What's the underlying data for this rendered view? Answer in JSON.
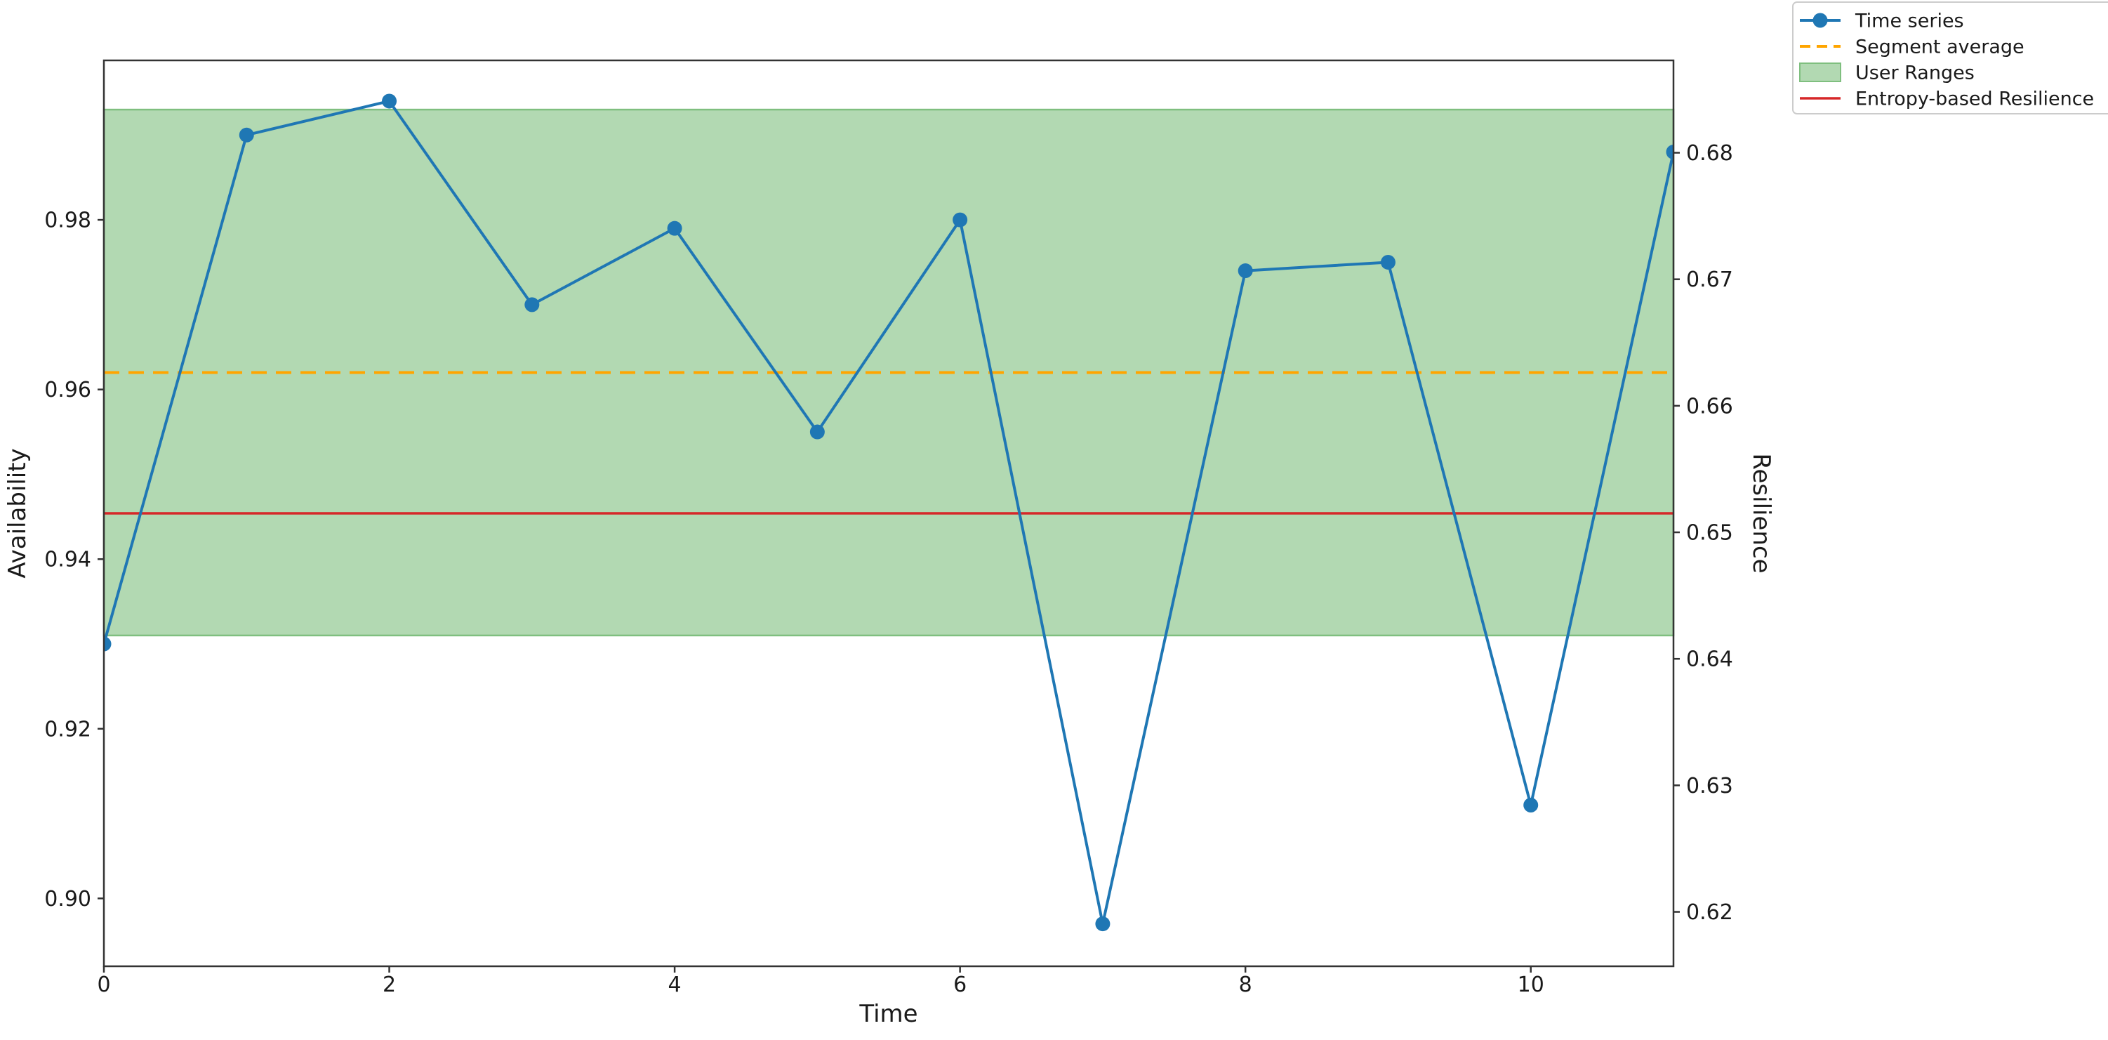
{
  "chart_data": {
    "type": "line",
    "title": "",
    "xlabel": "Time",
    "ylabel_left": "Availability",
    "ylabel_right": "Resilience",
    "x": [
      0,
      1,
      2,
      3,
      4,
      5,
      6,
      7,
      8,
      9,
      10,
      11
    ],
    "series": [
      {
        "name": "Time series",
        "axis": "left",
        "color": "#1f77b4",
        "marker": "circle",
        "values": [
          0.93,
          0.99,
          0.994,
          0.97,
          0.979,
          0.955,
          0.98,
          0.897,
          0.974,
          0.975,
          0.911,
          0.988
        ]
      }
    ],
    "overlays": [
      {
        "name": "Segment average",
        "kind": "hline",
        "axis": "left",
        "value": 0.962,
        "color": "#ffa500",
        "dash": [
          22,
          13
        ],
        "width": 4
      },
      {
        "name": "User Ranges",
        "kind": "hspan",
        "axis": "left",
        "from": 0.931,
        "to": 0.993,
        "fill": "#b2d9b2",
        "edge": "#7fbf7f"
      },
      {
        "name": "Entropy-based Resilience",
        "kind": "hline",
        "axis": "right",
        "value": 0.6515,
        "color": "#d62728",
        "dash": null,
        "width": 3.5
      }
    ],
    "x_ticks": [
      0,
      2,
      4,
      6,
      8,
      10
    ],
    "x_tick_labels": [
      "0",
      "2",
      "4",
      "6",
      "8",
      "10"
    ],
    "left_ticks": [
      0.9,
      0.92,
      0.94,
      0.96,
      0.98
    ],
    "left_tick_labels": [
      "0.90",
      "0.92",
      "0.94",
      "0.96",
      "0.98"
    ],
    "right_ticks": [
      0.62,
      0.63,
      0.64,
      0.65,
      0.66,
      0.67,
      0.68
    ],
    "right_tick_labels": [
      "0.62",
      "0.63",
      "0.64",
      "0.65",
      "0.66",
      "0.67",
      "0.68"
    ],
    "xlim": [
      0,
      11
    ],
    "ylim_left": [
      0.892,
      0.9988
    ],
    "ylim_right": [
      0.6157,
      0.6873
    ],
    "grid": false,
    "legend_position": "outside-upper-right"
  },
  "legend": {
    "items": [
      {
        "label": "Time series",
        "style": "line-marker",
        "color": "#1f77b4"
      },
      {
        "label": "Segment average",
        "style": "dashed",
        "color": "#ffa500"
      },
      {
        "label": "User Ranges",
        "style": "patch",
        "fill": "#b2d9b2",
        "edge": "#7fbf7f"
      },
      {
        "label": "Entropy-based Resilience",
        "style": "line",
        "color": "#d62728"
      }
    ]
  }
}
